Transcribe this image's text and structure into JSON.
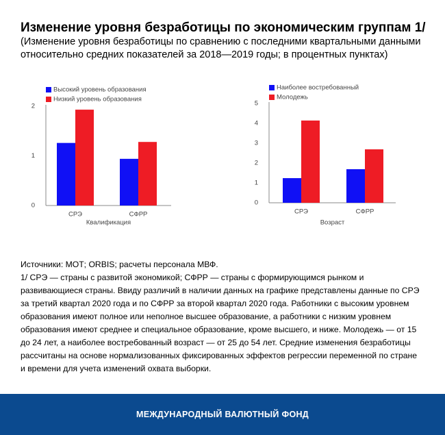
{
  "title": "Изменение уровня безработицы по экономическим группам 1/",
  "subtitle": [
    "(Изменение уровня безработицы по сравнению с последними квартальными данными",
    "относительно средних показателей за 2018—2019 годы; в процентных пунктах)"
  ],
  "chart_data": [
    {
      "type": "bar",
      "x_label": "Квалификация",
      "categories": [
        "СРЭ",
        "СФРР"
      ],
      "series": [
        {
          "name": "Высокий уровень образования",
          "color": "#1010f5",
          "values": [
            1.26,
            0.94
          ]
        },
        {
          "name": "Низкий уровень образования",
          "color": "#ee1c25",
          "values": [
            1.93,
            1.28
          ]
        }
      ],
      "ylim": [
        0,
        2
      ],
      "yticks": [
        0,
        1,
        2
      ]
    },
    {
      "type": "bar",
      "x_label": "Возраст",
      "categories": [
        "СРЭ",
        "СФРР"
      ],
      "series": [
        {
          "name": "Наиболее востребованный",
          "color": "#1010f5",
          "values": [
            1.24,
            1.69
          ]
        },
        {
          "name": "Молодежь",
          "color": "#ee1c25",
          "values": [
            4.14,
            2.69
          ]
        }
      ],
      "ylim": [
        0,
        5
      ],
      "yticks": [
        0,
        1,
        2,
        3,
        4,
        5
      ]
    }
  ],
  "sources": "Источники: МОТ; ORBIS; расчеты персонала МВФ.",
  "note": "1/ СРЭ — страны с развитой экономикой; СФРР — страны с формирующимся рынком и развивающиеся страны. Ввиду различий в наличии данных на графике представлены данные по СРЭ за третий квартал 2020 года и по СФРР за второй квартал 2020 года. Работники с высоким уровнем образования имеют полное или неполное высшее образование, а работники с низким уровнем образования имеют среднее и специальное образование, кроме высшего, и ниже. Молодежь — от 15 до 24 лет, а наиболее востребованный возраст — от 25 до 54 лет. Средние изменения безработицы рассчитаны на основе нормализованных фиксированных эффектов регрессии переменной по стране и времени для учета изменений охвата выборки.",
  "footer": "МЕЖДУНАРОДНЫЙ ВАЛЮТНЫЙ ФОНД"
}
